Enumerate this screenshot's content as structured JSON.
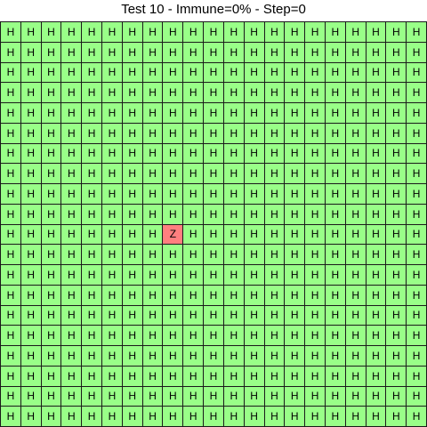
{
  "title": "Test 10 - Immune=0% - Step=0",
  "grid": {
    "rows": 20,
    "cols": 21,
    "default_state": "H",
    "special_cells": [
      {
        "row": 10,
        "col": 8,
        "state": "Z"
      }
    ]
  },
  "states": {
    "H": {
      "color": "#99ff88"
    },
    "Z": {
      "color": "#ff7f7f"
    }
  }
}
